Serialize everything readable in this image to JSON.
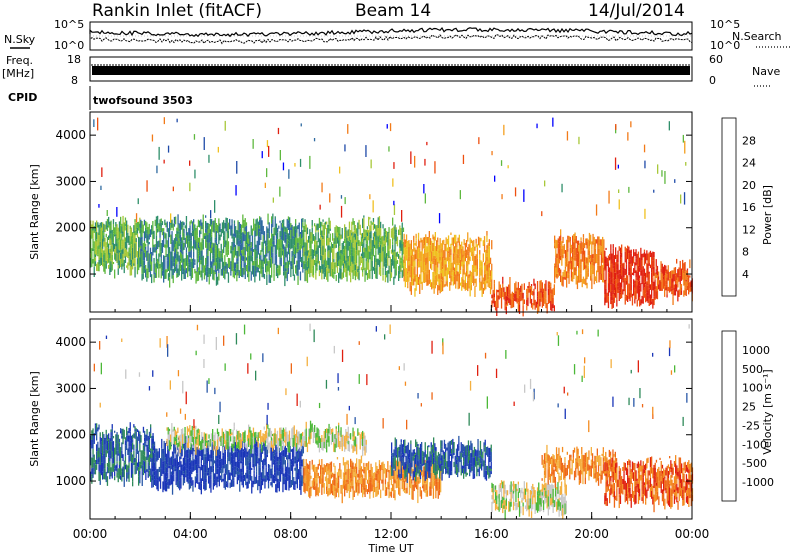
{
  "header": {
    "station": "Rankin Inlet (fitACF)",
    "beam": "Beam 14",
    "date": "14/Jul/2014"
  },
  "top_panels": {
    "nsky_label": "N.Sky",
    "nsearch_label": "N.Search",
    "count_ticks": [
      "10^5",
      "10^0"
    ],
    "freq_label_1": "Freq.",
    "freq_label_2": "[MHz]",
    "freq_ticks": [
      "18",
      "8"
    ],
    "nave_label": "Nave",
    "nave_ticks": [
      "60",
      "0"
    ],
    "cpid_label": "CPID",
    "cpid_value": "twofsound 3503"
  },
  "chart_data": [
    {
      "type": "heatmap",
      "panel": "power",
      "ylabel": "Slant Range [km]",
      "ylim": [
        180,
        4500
      ],
      "yticks": [
        1000,
        2000,
        3000,
        4000
      ],
      "xlabel": "Time UT",
      "xticks": [
        "00:00",
        "04:00",
        "08:00",
        "12:00",
        "16:00",
        "20:00",
        "00:00"
      ],
      "xlim_hours": [
        0,
        24
      ],
      "colorbar": {
        "label": "Power [dB]",
        "ticks": [
          "28",
          "24",
          "20",
          "16",
          "12",
          "8",
          "4"
        ],
        "colors": [
          "#0000ff",
          "#1e4aa8",
          "#2e6aa0",
          "#2f8f6a",
          "#5fb83f",
          "#a8c83a",
          "#f0c020",
          "#f4a020",
          "#f27a18",
          "#ee5010",
          "#e02010"
        ]
      },
      "bands": [
        {
          "t0": 0.0,
          "t1": 2.0,
          "r0": 1150,
          "r1": 2100,
          "level": 4
        },
        {
          "t0": 2.0,
          "t1": 8.5,
          "r0": 1000,
          "r1": 2150,
          "level": 3
        },
        {
          "t0": 8.5,
          "t1": 12.5,
          "r0": 1000,
          "r1": 2100,
          "level": 4
        },
        {
          "t0": 12.5,
          "t1": 16.0,
          "r0": 750,
          "r1": 1750,
          "level": 7
        },
        {
          "t0": 16.0,
          "t1": 18.5,
          "r0": 350,
          "r1": 800,
          "level": 9
        },
        {
          "t0": 18.5,
          "t1": 20.5,
          "r0": 900,
          "r1": 1800,
          "level": 8
        },
        {
          "t0": 20.5,
          "t1": 22.5,
          "r0": 450,
          "r1": 1500,
          "level": 10
        },
        {
          "t0": 22.5,
          "t1": 24.0,
          "r0": 600,
          "r1": 1200,
          "level": 9
        }
      ]
    },
    {
      "type": "heatmap",
      "panel": "velocity",
      "ylabel": "Slant Range [km]",
      "ylim": [
        180,
        4500
      ],
      "yticks": [
        1000,
        2000,
        3000,
        4000
      ],
      "xlabel": "Time UT",
      "xticks": [
        "00:00",
        "04:00",
        "08:00",
        "12:00",
        "16:00",
        "20:00",
        "00:00"
      ],
      "xlim_hours": [
        0,
        24
      ],
      "colorbar": {
        "label": "Velocity [m s⁻¹]",
        "ticks": [
          "1000",
          "500",
          "100",
          "25",
          "-25",
          "-100",
          "-500",
          "-1000"
        ],
        "colors": [
          "#1a36b8",
          "#2a58a8",
          "#2f8a5a",
          "#4cb838",
          "#c8c8c8",
          "#f4b040",
          "#f48c20",
          "#ee6818",
          "#e02010"
        ]
      },
      "bands": [
        {
          "t0": 0.0,
          "t1": 2.5,
          "r0": 1100,
          "r1": 2100,
          "level": 1
        },
        {
          "t0": 2.5,
          "t1": 8.5,
          "r0": 950,
          "r1": 1800,
          "level": 0
        },
        {
          "t0": 3.0,
          "t1": 11.0,
          "r0": 1800,
          "r1": 2100,
          "level": 4
        },
        {
          "t0": 8.5,
          "t1": 14.0,
          "r0": 800,
          "r1": 1400,
          "level": 6
        },
        {
          "t0": 12.0,
          "t1": 16.0,
          "r0": 1200,
          "r1": 1800,
          "level": 1
        },
        {
          "t0": 16.0,
          "t1": 19.0,
          "r0": 400,
          "r1": 900,
          "level": 4
        },
        {
          "t0": 18.0,
          "t1": 21.0,
          "r0": 1100,
          "r1": 1600,
          "level": 6
        },
        {
          "t0": 20.5,
          "t1": 24.0,
          "r0": 600,
          "r1": 1400,
          "level": 7
        }
      ]
    }
  ]
}
